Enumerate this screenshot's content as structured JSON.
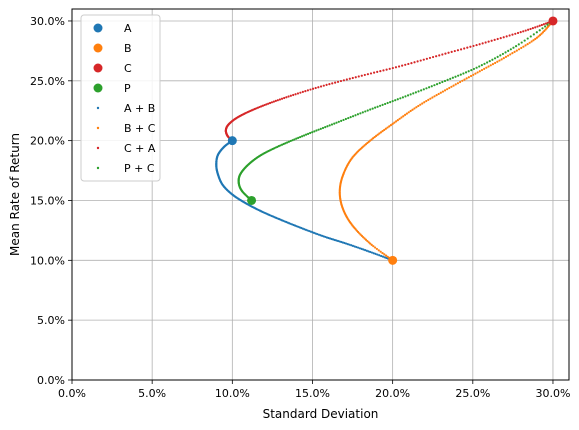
{
  "chart_data": {
    "type": "scatter",
    "title": "",
    "xlabel": "Standard Deviation",
    "ylabel": "Mean Rate of Return",
    "xlim": [
      0,
      0.31
    ],
    "ylim": [
      0,
      0.31
    ],
    "x_ticks": [
      0,
      0.05,
      0.1,
      0.15,
      0.2,
      0.25,
      0.3
    ],
    "x_tick_labels": [
      "0.0%",
      "5.0%",
      "10.0%",
      "15.0%",
      "20.0%",
      "25.0%",
      "30.0%"
    ],
    "y_ticks": [
      0,
      0.05,
      0.1,
      0.15,
      0.2,
      0.25,
      0.3
    ],
    "y_tick_labels": [
      "0.0%",
      "5.0%",
      "10.0%",
      "15.0%",
      "20.0%",
      "25.0%",
      "30.0%"
    ],
    "grid": true,
    "legend_position": "top-left",
    "points": [
      {
        "name": "A",
        "x": 0.1,
        "y": 0.2,
        "color": "#1f77b4"
      },
      {
        "name": "B",
        "x": 0.2,
        "y": 0.1,
        "color": "#ff7f0e"
      },
      {
        "name": "C",
        "x": 0.3,
        "y": 0.3,
        "color": "#d62728"
      },
      {
        "name": "P",
        "x": 0.112,
        "y": 0.15,
        "color": "#2ca02c"
      }
    ],
    "curves": [
      {
        "name": "A + B",
        "color": "#1f77b4",
        "x": [
          0.1,
          0.095,
          0.091,
          0.09,
          0.091,
          0.094,
          0.1,
          0.108,
          0.118,
          0.13,
          0.143,
          0.157,
          0.171,
          0.186,
          0.2
        ],
        "y": [
          0.2,
          0.195,
          0.188,
          0.18,
          0.172,
          0.163,
          0.155,
          0.148,
          0.141,
          0.134,
          0.127,
          0.12,
          0.114,
          0.107,
          0.1
        ]
      },
      {
        "name": "B + C",
        "color": "#ff7f0e",
        "x": [
          0.2,
          0.186,
          0.175,
          0.169,
          0.167,
          0.169,
          0.175,
          0.186,
          0.2,
          0.216,
          0.234,
          0.253,
          0.272,
          0.29,
          0.3
        ],
        "y": [
          0.1,
          0.114,
          0.129,
          0.143,
          0.157,
          0.171,
          0.186,
          0.2,
          0.214,
          0.229,
          0.243,
          0.257,
          0.271,
          0.286,
          0.3
        ]
      },
      {
        "name": "C + A",
        "color": "#d62728",
        "x": [
          0.1,
          0.097,
          0.096,
          0.098,
          0.104,
          0.115,
          0.131,
          0.152,
          0.177,
          0.204,
          0.231,
          0.258,
          0.283,
          0.3
        ],
        "y": [
          0.2,
          0.204,
          0.209,
          0.214,
          0.22,
          0.227,
          0.235,
          0.244,
          0.253,
          0.262,
          0.272,
          0.282,
          0.292,
          0.3
        ]
      },
      {
        "name": "P + C",
        "color": "#2ca02c",
        "x": [
          0.112,
          0.106,
          0.104,
          0.105,
          0.11,
          0.118,
          0.13,
          0.146,
          0.165,
          0.186,
          0.208,
          0.231,
          0.254,
          0.277,
          0.3
        ],
        "y": [
          0.15,
          0.158,
          0.165,
          0.172,
          0.18,
          0.188,
          0.196,
          0.205,
          0.215,
          0.226,
          0.237,
          0.249,
          0.262,
          0.279,
          0.3
        ]
      }
    ],
    "legend": [
      {
        "label": "A",
        "marker": "big",
        "color": "#1f77b4"
      },
      {
        "label": "B",
        "marker": "big",
        "color": "#ff7f0e"
      },
      {
        "label": "C",
        "marker": "big",
        "color": "#d62728"
      },
      {
        "label": "P",
        "marker": "big",
        "color": "#2ca02c"
      },
      {
        "label": "A + B",
        "marker": "small",
        "color": "#1f77b4"
      },
      {
        "label": "B + C",
        "marker": "small",
        "color": "#ff7f0e"
      },
      {
        "label": "C + A",
        "marker": "small",
        "color": "#d62728"
      },
      {
        "label": "P + C",
        "marker": "small",
        "color": "#2ca02c"
      }
    ]
  }
}
